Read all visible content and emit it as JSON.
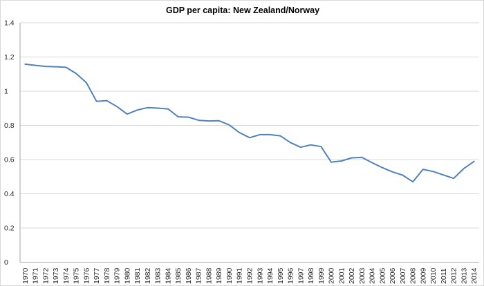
{
  "chart_data": {
    "type": "line",
    "title": "GDP per capita: New Zealand/Norway",
    "categories": [
      "1970",
      "1971",
      "1972",
      "1973",
      "1974",
      "1975",
      "1976",
      "1977",
      "1978",
      "1979",
      "1980",
      "1981",
      "1982",
      "1983",
      "1984",
      "1985",
      "1986",
      "1987",
      "1988",
      "1989",
      "1990",
      "1991",
      "1992",
      "1993",
      "1994",
      "1995",
      "1996",
      "1997",
      "1998",
      "1999",
      "2000",
      "2001",
      "2002",
      "2003",
      "2004",
      "2005",
      "2006",
      "2007",
      "2008",
      "2009",
      "2010",
      "2011",
      "2012",
      "2013",
      "2014"
    ],
    "series": [
      {
        "color": "#4F81BD",
        "values": [
          1.158,
          1.151,
          1.145,
          1.143,
          1.14,
          1.103,
          1.05,
          0.94,
          0.945,
          0.91,
          0.866,
          0.89,
          0.904,
          0.901,
          0.896,
          0.85,
          0.848,
          0.83,
          0.826,
          0.827,
          0.803,
          0.758,
          0.728,
          0.746,
          0.746,
          0.739,
          0.7,
          0.672,
          0.686,
          0.676,
          0.585,
          0.592,
          0.61,
          0.613,
          0.582,
          0.553,
          0.528,
          0.509,
          0.47,
          0.543,
          0.53,
          0.51,
          0.49,
          0.548,
          0.589
        ]
      }
    ],
    "xlabel": "",
    "ylabel": "",
    "ylim": [
      0,
      1.4
    ],
    "yticks": [
      0,
      0.2,
      0.4,
      0.6,
      0.8,
      1,
      1.2,
      1.4
    ],
    "ytick_labels": [
      "0",
      "0.2",
      "0.4",
      "0.6",
      "0.8",
      "1",
      "1.2",
      "1.4"
    ],
    "grid": true,
    "legend_position": "none",
    "colors": {
      "line": "#4F81BD",
      "gridline": "#D9D9D9",
      "axis_line": "#A6A6A6",
      "tick_label": "#262626",
      "title": "#000000",
      "background": "#FFFFFF",
      "frame_border": "#D9D9D9"
    }
  }
}
